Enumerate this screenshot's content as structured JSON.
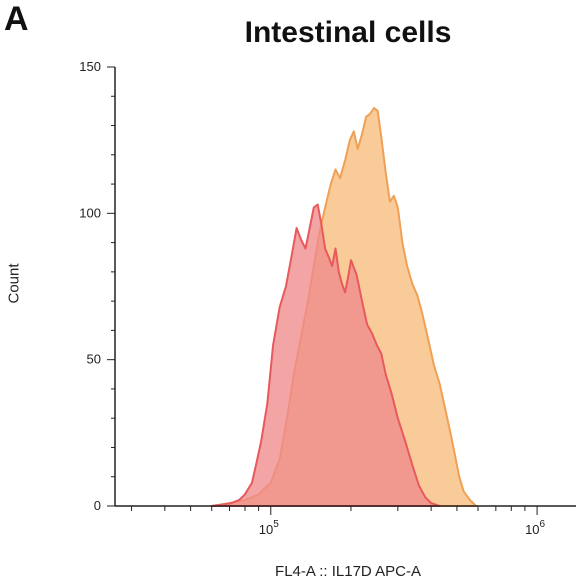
{
  "panel_label": "A",
  "chart_data": {
    "type": "area",
    "title": "Intestinal cells",
    "xlabel": "FL4-A :: IL17D APC-A",
    "ylabel": "Count",
    "xscale": "log",
    "xlim": [
      26000,
      1400000
    ],
    "ylim": [
      0,
      150
    ],
    "yticks": [
      0,
      50,
      100,
      150
    ],
    "xticks": [
      {
        "value": 100000,
        "base": "10",
        "exp": "5"
      },
      {
        "value": 1000000,
        "base": "10",
        "exp": "6"
      }
    ],
    "grid": false,
    "legend": "none",
    "series": [
      {
        "color": "#e8595c",
        "fill": "#f08a8c",
        "x": [
          60000,
          66000,
          71000,
          76000,
          80000,
          85000,
          88000,
          92000,
          97000,
          102000,
          108000,
          114000,
          120000,
          125000,
          130000,
          135000,
          140000,
          145000,
          150000,
          155000,
          160000,
          165000,
          170000,
          175000,
          180000,
          185000,
          190000,
          195000,
          200000,
          210000,
          220000,
          230000,
          240000,
          250000,
          260000,
          270000,
          285000,
          300000,
          320000,
          340000,
          360000,
          380000,
          400000,
          430000
        ],
        "values": [
          0,
          0.5,
          1,
          2,
          4,
          8,
          14,
          22,
          35,
          55,
          68,
          75,
          86,
          95,
          91,
          88,
          95,
          102,
          103,
          96,
          88,
          85,
          82,
          88,
          80,
          76,
          73,
          78,
          84,
          79,
          70,
          62,
          59,
          55,
          52,
          45,
          38,
          30,
          22,
          14,
          7,
          3,
          1,
          0
        ]
      },
      {
        "color": "#f0a055",
        "fill": "#f9c894",
        "x": [
          60000,
          70000,
          80000,
          90000,
          100000,
          108000,
          115000,
          122000,
          130000,
          138000,
          145000,
          152000,
          160000,
          168000,
          175000,
          182000,
          190000,
          198000,
          205000,
          212000,
          220000,
          228000,
          236000,
          244000,
          252000,
          260000,
          270000,
          280000,
          290000,
          300000,
          312000,
          325000,
          340000,
          355000,
          370000,
          390000,
          410000,
          430000,
          450000,
          470000,
          490000,
          510000,
          530000,
          560000,
          590000
        ],
        "values": [
          0,
          1,
          2,
          4,
          8,
          16,
          30,
          45,
          58,
          70,
          82,
          93,
          102,
          110,
          115,
          112,
          118,
          125,
          128,
          122,
          127,
          133,
          134,
          136,
          135,
          126,
          114,
          104,
          106,
          102,
          90,
          82,
          76,
          72,
          66,
          57,
          48,
          42,
          34,
          26,
          18,
          10,
          5,
          2,
          0
        ]
      }
    ]
  }
}
